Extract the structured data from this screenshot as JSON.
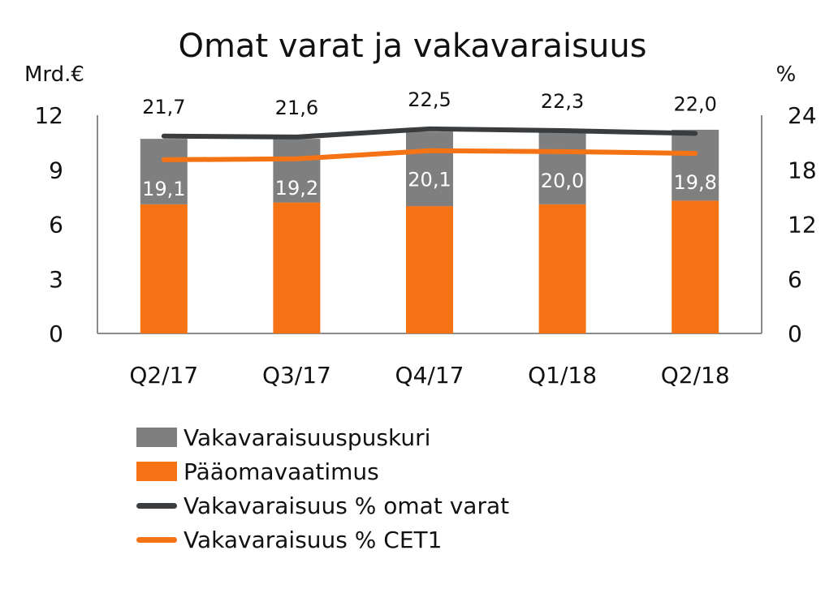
{
  "chart_data": {
    "type": "bar",
    "title": "Omat varat ja vakavaraisuus",
    "y_left_label": "Mrd.€",
    "y_right_label": "%",
    "categories": [
      "Q2/17",
      "Q3/17",
      "Q4/17",
      "Q1/18",
      "Q2/18"
    ],
    "ylim_left": [
      0,
      12
    ],
    "ylim_right": [
      0,
      24
    ],
    "yticks_left": [
      "0",
      "3",
      "6",
      "9",
      "12"
    ],
    "yticks_right": [
      "0",
      "6",
      "12",
      "18",
      "24"
    ],
    "stacked": true,
    "grid": false,
    "legend_position": "bottom",
    "series": [
      {
        "name": "Pääomavaatimus",
        "type": "bar",
        "axis": "left",
        "color": "#F57215",
        "values": [
          7.1,
          7.2,
          7.0,
          7.1,
          7.3
        ]
      },
      {
        "name": "Vakavaraisuuspuskuri",
        "type": "bar",
        "axis": "left",
        "color": "#7F7F7F",
        "values": [
          3.6,
          3.5,
          4.1,
          4.0,
          3.9
        ]
      },
      {
        "name": "Vakavaraisuus % omat varat",
        "type": "line",
        "axis": "right",
        "color": "#3A3D40",
        "values": [
          21.7,
          21.6,
          22.5,
          22.3,
          22.0
        ],
        "labels": [
          "21,7",
          "21,6",
          "22,5",
          "22,3",
          "22,0"
        ]
      },
      {
        "name": "Vakavaraisuus % CET1",
        "type": "line",
        "axis": "right",
        "color": "#F57215",
        "values": [
          19.1,
          19.2,
          20.1,
          20.0,
          19.8
        ],
        "labels": [
          "19,1",
          "19,2",
          "20,1",
          "20,0",
          "19,8"
        ]
      }
    ],
    "legend": [
      "Vakavaraisuuspuskuri",
      "Pääomavaatimus",
      "Vakavaraisuus % omat varat",
      "Vakavaraisuus % CET1"
    ]
  }
}
